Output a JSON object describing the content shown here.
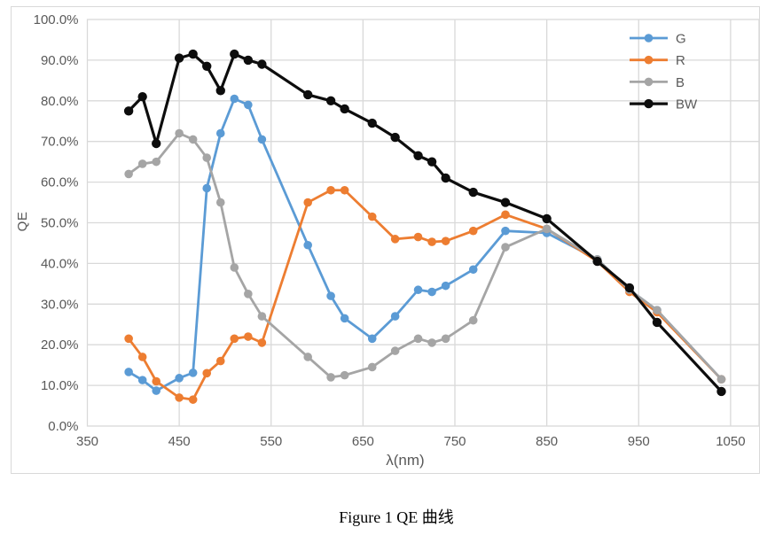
{
  "caption": "Figure 1 QE 曲线",
  "chart": {
    "background": "#ffffff",
    "frame_border_color": "#d9d9d9",
    "grid_color": "#d9d9d9",
    "tick_label_color": "#595959",
    "axis_title_color": "#595959",
    "legend_text_color": "#595959"
  },
  "chart_data": {
    "type": "line",
    "title": "",
    "xlabel": "λ(nm)",
    "ylabel": "QE",
    "xlim": [
      350,
      1081
    ],
    "ylim": [
      0,
      100
    ],
    "grid": true,
    "legend_position": "top-right",
    "x_ticks": [
      {
        "value": 350,
        "label": "350"
      },
      {
        "value": 450,
        "label": "450"
      },
      {
        "value": 550,
        "label": "550"
      },
      {
        "value": 650,
        "label": "650"
      },
      {
        "value": 750,
        "label": "750"
      },
      {
        "value": 850,
        "label": "850"
      },
      {
        "value": 950,
        "label": "950"
      },
      {
        "value": 1050,
        "label": "1050"
      }
    ],
    "y_ticks": [
      {
        "value": 100,
        "label": "100.0%"
      },
      {
        "value": 90,
        "label": "90.0%"
      },
      {
        "value": 80,
        "label": "80.0%"
      },
      {
        "value": 70,
        "label": "70.0%"
      },
      {
        "value": 60,
        "label": "60.0%"
      },
      {
        "value": 50,
        "label": "50.0%"
      },
      {
        "value": 40,
        "label": "40.0%"
      },
      {
        "value": 30,
        "label": "30.0%"
      },
      {
        "value": 20,
        "label": "20.0%"
      },
      {
        "value": 10,
        "label": "10.0%"
      },
      {
        "value": 0,
        "label": "0.0%"
      }
    ],
    "x": [
      395,
      410,
      425,
      450,
      465,
      480,
      495,
      510,
      525,
      540,
      590,
      615,
      630,
      660,
      685,
      710,
      725,
      740,
      770,
      805,
      850,
      905,
      940,
      970,
      1040
    ],
    "series": [
      {
        "name": "G",
        "color": "#5B9BD5",
        "values": [
          13.3,
          11.3,
          8.7,
          11.8,
          13.1,
          58.5,
          72,
          80.5,
          79,
          70.5,
          44.5,
          32,
          26.5,
          21.5,
          27,
          33.5,
          33,
          34.5,
          38.5,
          48,
          47.5,
          41,
          33.5,
          28.5,
          11.5
        ]
      },
      {
        "name": "R",
        "color": "#ED7D31",
        "values": [
          21.5,
          17,
          11,
          7,
          6.5,
          13,
          16,
          21.5,
          22,
          20.5,
          55,
          58,
          58,
          51.5,
          46,
          46.5,
          45.3,
          45.5,
          48,
          52,
          48.5,
          40.5,
          33,
          28,
          11.5
        ]
      },
      {
        "name": "B",
        "color": "#A5A5A5",
        "values": [
          62,
          64.5,
          65,
          72,
          70.5,
          66,
          55,
          39,
          32.5,
          27,
          17,
          12,
          12.5,
          14.5,
          18.5,
          21.5,
          20.5,
          21.5,
          26,
          44,
          48.5,
          41,
          33.5,
          28.5,
          11.5
        ]
      },
      {
        "name": "BW",
        "color": "#0D0D0D",
        "values": [
          77.5,
          81,
          69.5,
          90.5,
          91.5,
          88.5,
          82.5,
          91.5,
          90,
          89,
          81.5,
          80,
          78,
          74.5,
          71,
          66.5,
          65,
          61,
          57.5,
          55,
          51,
          40.5,
          34,
          25.5,
          8.5
        ]
      }
    ]
  }
}
